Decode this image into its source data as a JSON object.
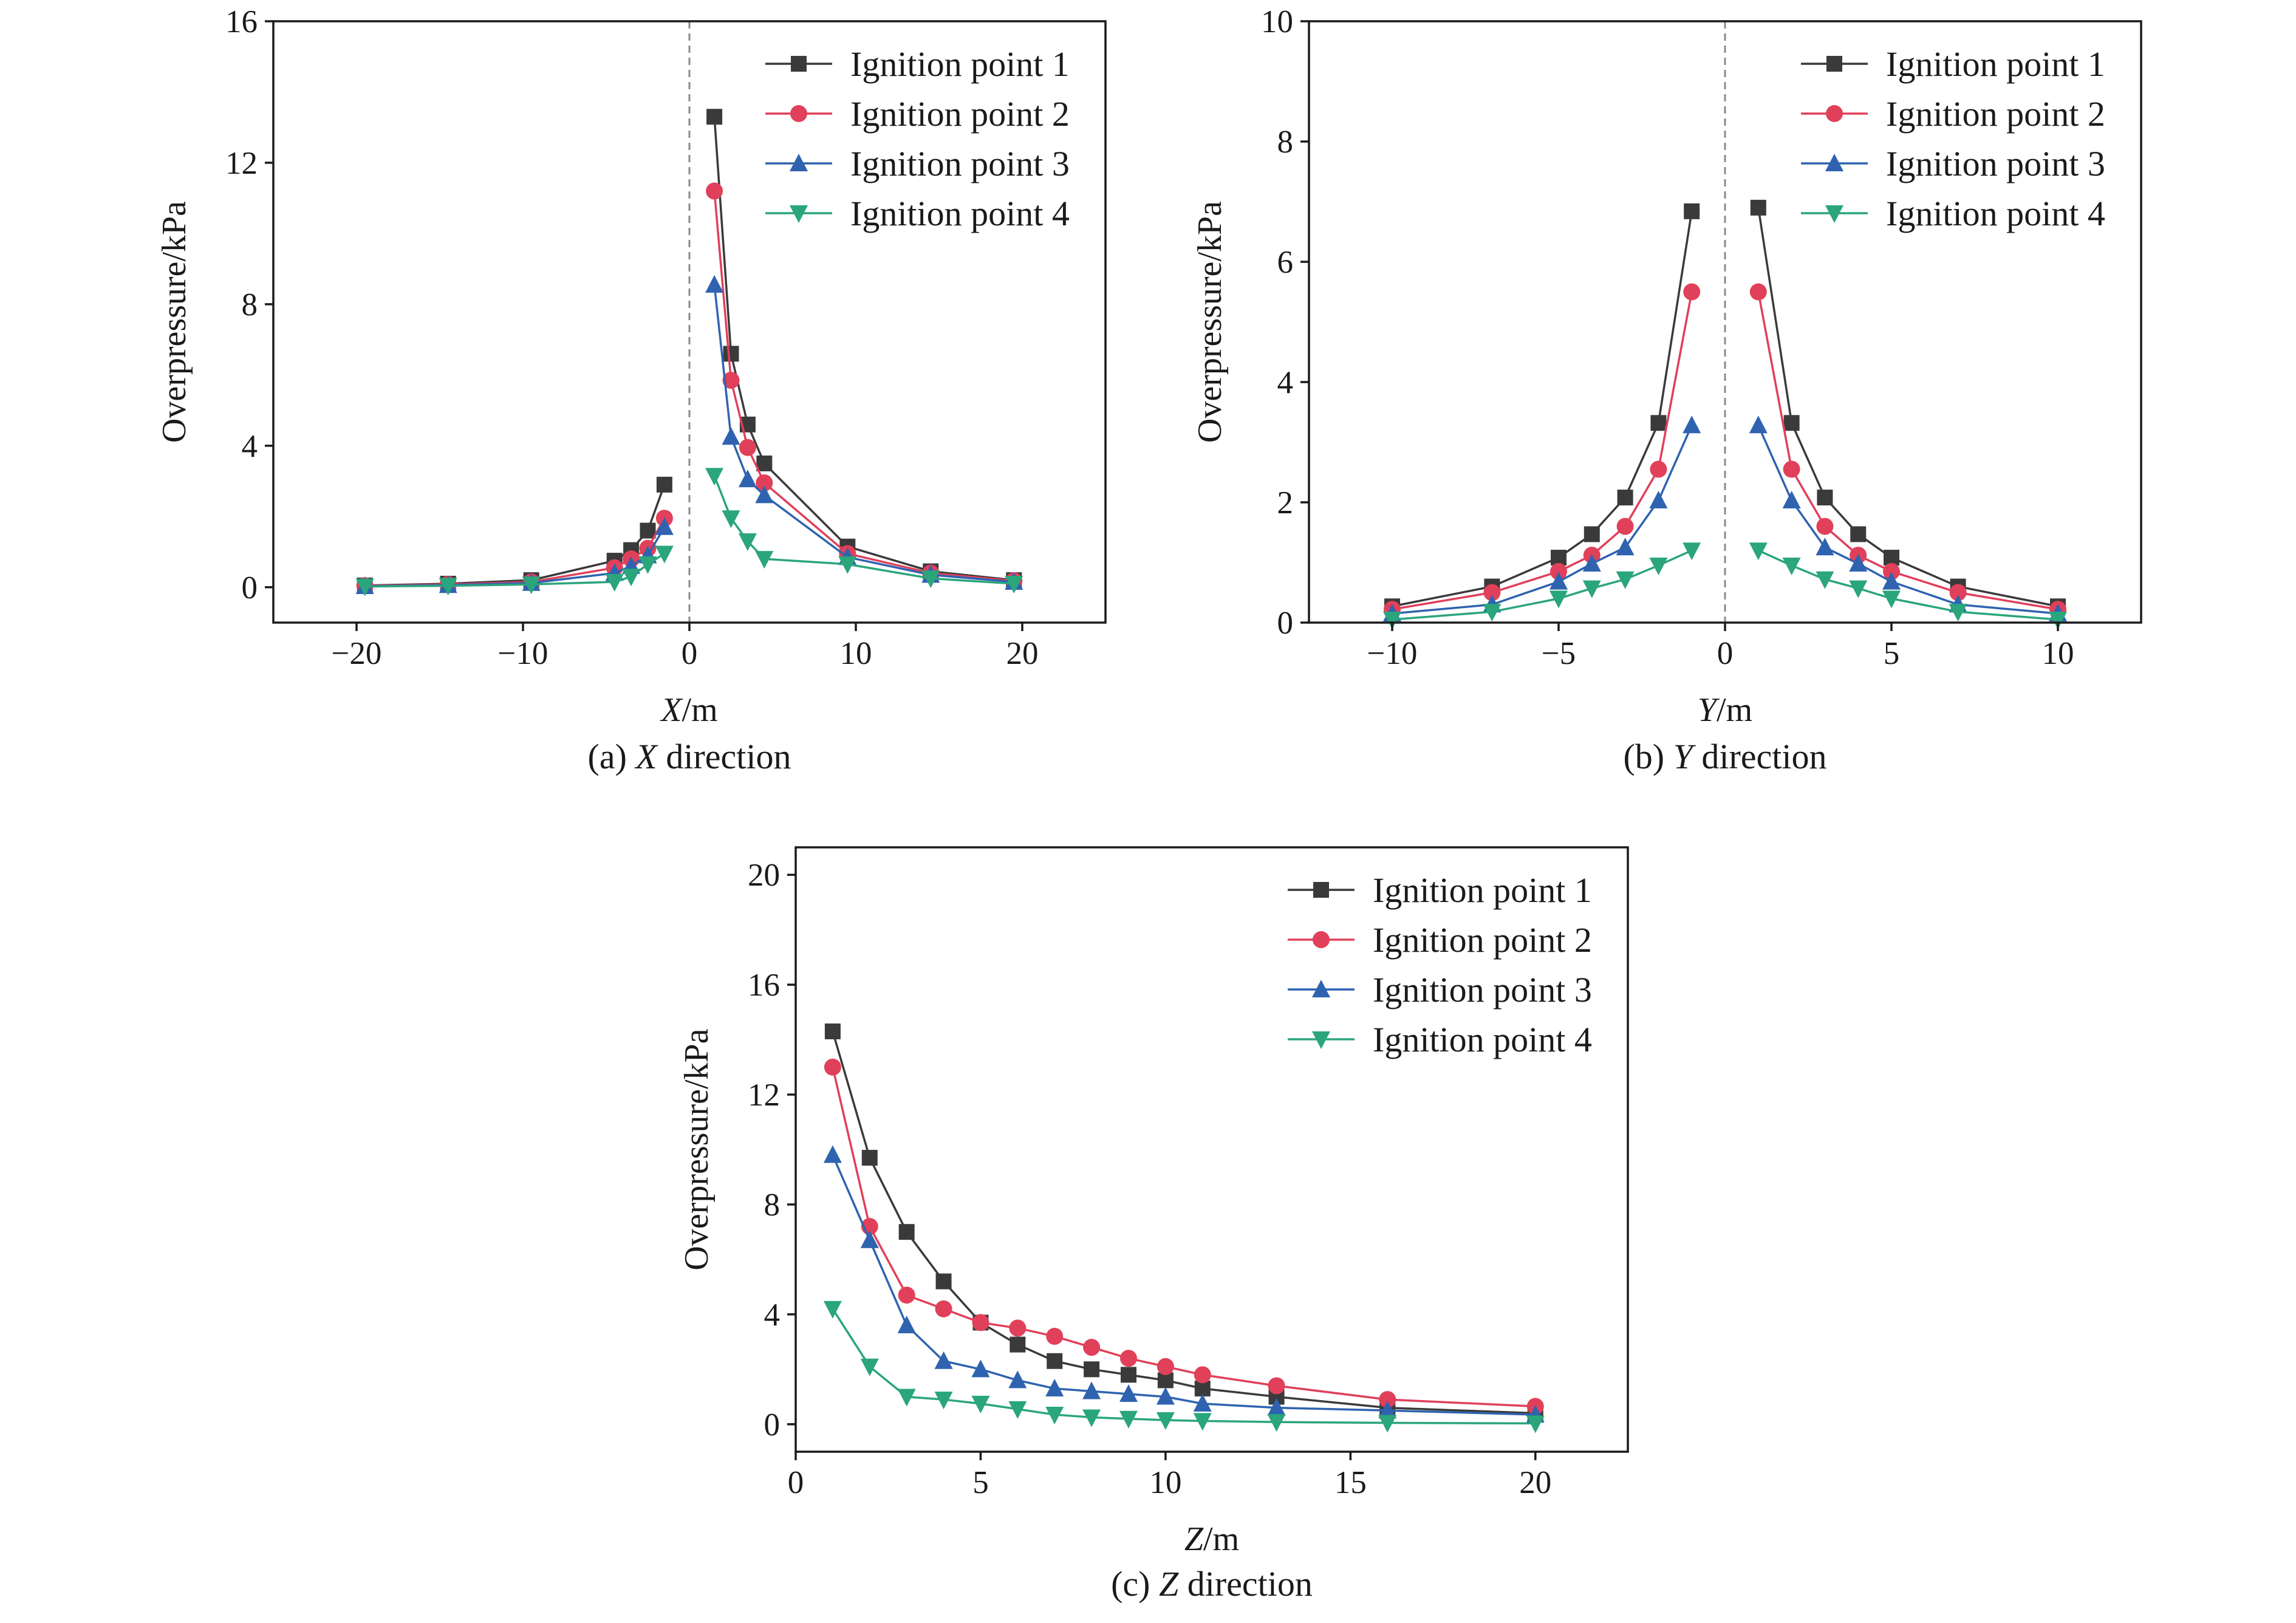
{
  "series_styles": [
    {
      "color": "#3a3a3a",
      "marker": "square"
    },
    {
      "color": "#e0405a",
      "marker": "circle"
    },
    {
      "color": "#2f63b0",
      "marker": "triangle-up"
    },
    {
      "color": "#2aa57c",
      "marker": "triangle-down"
    }
  ],
  "chart_data": [
    {
      "type": "line",
      "caption_prefix": "(a) ",
      "caption_var": "X",
      "caption_suffix": " direction",
      "xlabel_var": "X",
      "xlabel_unit": "/m",
      "ylabel": "Overpressure/kPa",
      "xlim": [
        -25,
        25
      ],
      "ylim": [
        -1,
        16
      ],
      "xticks": [
        -20,
        -10,
        0,
        10,
        20
      ],
      "xtick_labels": [
        "−20",
        "−10",
        "0",
        "10",
        "20"
      ],
      "yticks": [
        0,
        4,
        8,
        12,
        16
      ],
      "ytick_labels": [
        "0",
        "4",
        "8",
        "12",
        "16"
      ],
      "legend_position": "top-right",
      "zero_line": true,
      "grid": false,
      "series": [
        {
          "name": "Ignition point 1",
          "segments": [
            {
              "x": [
                -19.5,
                -14.5,
                -9.5,
                -4.5,
                -3.5,
                -2.5,
                -1.5
              ],
              "y": [
                0.05,
                0.1,
                0.2,
                0.75,
                1.05,
                1.6,
                2.9
              ]
            },
            {
              "x": [
                1.5,
                2.5,
                3.5,
                4.5,
                9.5,
                14.5,
                19.5
              ],
              "y": [
                13.3,
                6.6,
                4.6,
                3.5,
                1.15,
                0.45,
                0.2
              ]
            }
          ]
        },
        {
          "name": "Ignition point 2",
          "segments": [
            {
              "x": [
                -19.5,
                -14.5,
                -9.5,
                -4.5,
                -3.5,
                -2.5,
                -1.5
              ],
              "y": [
                0.04,
                0.08,
                0.15,
                0.55,
                0.8,
                1.1,
                1.95
              ]
            },
            {
              "x": [
                1.5,
                2.5,
                3.5,
                4.5,
                9.5,
                14.5,
                19.5
              ],
              "y": [
                11.2,
                5.85,
                3.95,
                2.95,
                0.95,
                0.4,
                0.18
              ]
            }
          ]
        },
        {
          "name": "Ignition point 3",
          "segments": [
            {
              "x": [
                -19.5,
                -14.5,
                -9.5,
                -4.5,
                -3.5,
                -2.5,
                -1.5
              ],
              "y": [
                0.03,
                0.06,
                0.12,
                0.4,
                0.6,
                0.9,
                1.7
              ]
            },
            {
              "x": [
                1.5,
                2.5,
                3.5,
                4.5,
                9.5,
                14.5,
                19.5
              ],
              "y": [
                8.55,
                4.25,
                3.05,
                2.6,
                0.85,
                0.35,
                0.15
              ]
            }
          ]
        },
        {
          "name": "Ignition point 4",
          "segments": [
            {
              "x": [
                -19.5,
                -14.5,
                -9.5,
                -4.5,
                -3.5,
                -2.5,
                -1.5
              ],
              "y": [
                0.02,
                0.04,
                0.08,
                0.15,
                0.3,
                0.65,
                0.95
              ]
            },
            {
              "x": [
                1.5,
                2.5,
                3.5,
                4.5,
                9.5,
                14.5,
                19.5
              ],
              "y": [
                3.15,
                1.95,
                1.3,
                0.8,
                0.65,
                0.25,
                0.1
              ]
            }
          ]
        }
      ]
    },
    {
      "type": "line",
      "caption_prefix": "(b) ",
      "caption_var": "Y",
      "caption_suffix": " direction",
      "xlabel_var": "Y",
      "xlabel_unit": "/m",
      "ylabel": "Overpressure/kPa",
      "xlim": [
        -12.5,
        12.5
      ],
      "ylim": [
        0,
        10
      ],
      "xticks": [
        -10,
        -5,
        0,
        5,
        10
      ],
      "xtick_labels": [
        "−10",
        "−5",
        "0",
        "5",
        "10"
      ],
      "yticks": [
        0,
        2,
        4,
        6,
        8,
        10
      ],
      "ytick_labels": [
        "0",
        "2",
        "4",
        "6",
        "8",
        "10"
      ],
      "legend_position": "top-right",
      "zero_line": true,
      "grid": false,
      "series": [
        {
          "name": "Ignition point 1",
          "segments": [
            {
              "x": [
                -10,
                -7,
                -5,
                -4,
                -3,
                -2,
                -1
              ],
              "y": [
                0.27,
                0.6,
                1.08,
                1.47,
                2.08,
                3.32,
                6.84
              ]
            },
            {
              "x": [
                1,
                2,
                3,
                4,
                5,
                7,
                10
              ],
              "y": [
                6.9,
                3.32,
                2.08,
                1.47,
                1.08,
                0.6,
                0.27
              ]
            }
          ]
        },
        {
          "name": "Ignition point 2",
          "segments": [
            {
              "x": [
                -10,
                -7,
                -5,
                -4,
                -3,
                -2,
                -1
              ],
              "y": [
                0.22,
                0.5,
                0.85,
                1.12,
                1.6,
                2.55,
                5.5
              ]
            },
            {
              "x": [
                1,
                2,
                3,
                4,
                5,
                7,
                10
              ],
              "y": [
                5.5,
                2.55,
                1.6,
                1.12,
                0.85,
                0.5,
                0.22
              ]
            }
          ]
        },
        {
          "name": "Ignition point 3",
          "segments": [
            {
              "x": [
                -10,
                -7,
                -5,
                -4,
                -3,
                -2,
                -1
              ],
              "y": [
                0.15,
                0.3,
                0.68,
                0.98,
                1.25,
                2.03,
                3.28
              ]
            },
            {
              "x": [
                1,
                2,
                3,
                4,
                5,
                7,
                10
              ],
              "y": [
                3.28,
                2.03,
                1.25,
                0.98,
                0.68,
                0.3,
                0.15
              ]
            }
          ]
        },
        {
          "name": "Ignition point 4",
          "segments": [
            {
              "x": [
                -10,
                -7,
                -5,
                -4,
                -3,
                -2,
                -1
              ],
              "y": [
                0.05,
                0.18,
                0.4,
                0.57,
                0.72,
                0.95,
                1.2
              ]
            },
            {
              "x": [
                1,
                2,
                3,
                4,
                5,
                7,
                10
              ],
              "y": [
                1.2,
                0.95,
                0.72,
                0.57,
                0.4,
                0.18,
                0.05
              ]
            }
          ]
        }
      ]
    },
    {
      "type": "line",
      "caption_prefix": "(c) ",
      "caption_var": "Z",
      "caption_suffix": " direction",
      "xlabel_var": "Z",
      "xlabel_unit": "/m",
      "ylabel": "Overpressure/kPa",
      "xlim": [
        0,
        22.5
      ],
      "ylim": [
        -1,
        21
      ],
      "xticks": [
        0,
        5,
        10,
        15,
        20
      ],
      "xtick_labels": [
        "0",
        "5",
        "10",
        "15",
        "20"
      ],
      "yticks": [
        0,
        4,
        8,
        12,
        16,
        20
      ],
      "ytick_labels": [
        "0",
        "4",
        "8",
        "12",
        "16",
        "20"
      ],
      "legend_position": "top-right",
      "zero_line": false,
      "grid": false,
      "series": [
        {
          "name": "Ignition point 1",
          "segments": [
            {
              "x": [
                1,
                2,
                3,
                4,
                5,
                6,
                7,
                8,
                9,
                10,
                11,
                13,
                16,
                20
              ],
              "y": [
                14.3,
                9.7,
                7.0,
                5.2,
                3.7,
                2.9,
                2.3,
                2.0,
                1.8,
                1.6,
                1.3,
                1.0,
                0.6,
                0.4
              ]
            }
          ]
        },
        {
          "name": "Ignition point 2",
          "segments": [
            {
              "x": [
                1,
                2,
                3,
                4,
                5,
                6,
                7,
                8,
                9,
                10,
                11,
                13,
                16,
                20
              ],
              "y": [
                13.0,
                7.2,
                4.7,
                4.2,
                3.7,
                3.5,
                3.2,
                2.8,
                2.4,
                2.1,
                1.8,
                1.4,
                0.9,
                0.65
              ]
            }
          ]
        },
        {
          "name": "Ignition point 3",
          "segments": [
            {
              "x": [
                1,
                2,
                3,
                4,
                5,
                6,
                7,
                8,
                9,
                10,
                11,
                13,
                16,
                20
              ],
              "y": [
                9.8,
                6.7,
                3.6,
                2.3,
                2.0,
                1.6,
                1.3,
                1.2,
                1.1,
                1.0,
                0.75,
                0.6,
                0.5,
                0.35
              ]
            }
          ]
        },
        {
          "name": "Ignition point 4",
          "segments": [
            {
              "x": [
                1,
                2,
                3,
                4,
                5,
                6,
                7,
                8,
                9,
                10,
                11,
                13,
                16,
                20
              ],
              "y": [
                4.2,
                2.1,
                1.0,
                0.9,
                0.75,
                0.55,
                0.35,
                0.25,
                0.2,
                0.15,
                0.12,
                0.08,
                0.05,
                0.03
              ]
            }
          ]
        }
      ]
    }
  ]
}
